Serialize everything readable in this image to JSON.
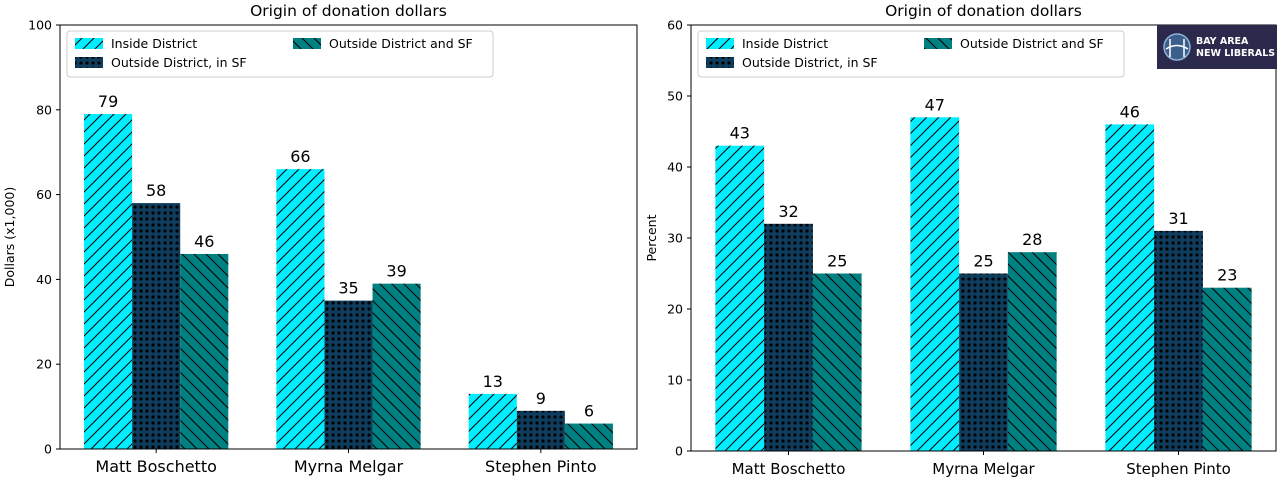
{
  "chart_data": [
    {
      "type": "bar",
      "title": "Origin of donation dollars",
      "xlabel": "",
      "ylabel": "Dollars (x1,000)",
      "ylim": [
        0,
        100
      ],
      "yticks": [
        "0",
        "20",
        "40",
        "60",
        "80",
        "100"
      ],
      "categories": [
        "Matt Boschetto",
        "Myrna Melgar",
        "Stephen Pinto"
      ],
      "series": [
        {
          "name": "Inside District",
          "values": [
            79,
            66,
            13
          ],
          "color": "#00eeff",
          "pattern": "diagonal-forward"
        },
        {
          "name": "Outside District, in SF",
          "values": [
            58,
            35,
            9
          ],
          "color": "#0f3d5e",
          "pattern": "dots"
        },
        {
          "name": "Outside District and SF",
          "values": [
            46,
            39,
            6
          ],
          "color": "#008080",
          "pattern": "diagonal-back"
        }
      ],
      "legend": "top-left",
      "grid": false
    },
    {
      "type": "bar",
      "title": "Origin of donation dollars",
      "xlabel": "",
      "ylabel": "Percent",
      "ylim": [
        0,
        60
      ],
      "yticks": [
        "0",
        "10",
        "20",
        "30",
        "40",
        "50",
        "60"
      ],
      "categories": [
        "Matt Boschetto",
        "Myrna Melgar",
        "Stephen Pinto"
      ],
      "series": [
        {
          "name": "Inside District",
          "values": [
            43,
            47,
            46
          ],
          "color": "#00eeff",
          "pattern": "diagonal-forward"
        },
        {
          "name": "Outside District, in SF",
          "values": [
            32,
            25,
            31
          ],
          "color": "#0f3d5e",
          "pattern": "dots"
        },
        {
          "name": "Outside District and SF",
          "values": [
            25,
            28,
            23
          ],
          "color": "#008080",
          "pattern": "diagonal-back"
        }
      ],
      "legend": "top-left",
      "grid": false
    }
  ],
  "logo": {
    "line1": "BAY AREA",
    "line2": "NEW LIBERALS",
    "bg": "#2b2a4c"
  }
}
